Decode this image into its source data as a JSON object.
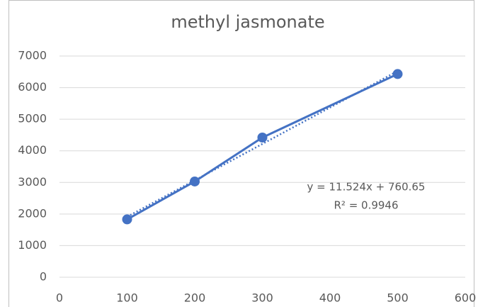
{
  "chart_data": {
    "type": "scatter",
    "title": "methyl jasmonate",
    "x": [
      100,
      200,
      300,
      500
    ],
    "series": [
      {
        "name": "methyl jasmonate",
        "color": "#4472c4",
        "values": [
          1830,
          3030,
          4420,
          6430
        ]
      }
    ],
    "xlim": [
      0,
      600
    ],
    "xticks": [
      0,
      100,
      200,
      300,
      400,
      500,
      600
    ],
    "ylim": [
      0,
      7000
    ],
    "yticks": [
      0,
      1000,
      2000,
      3000,
      4000,
      5000,
      6000,
      7000
    ],
    "grid": true,
    "trendline": {
      "slope": 11.524,
      "intercept": 760.65,
      "label": "y = 11.524x + 760.65",
      "r2_label": "R² = 0.9946"
    }
  }
}
